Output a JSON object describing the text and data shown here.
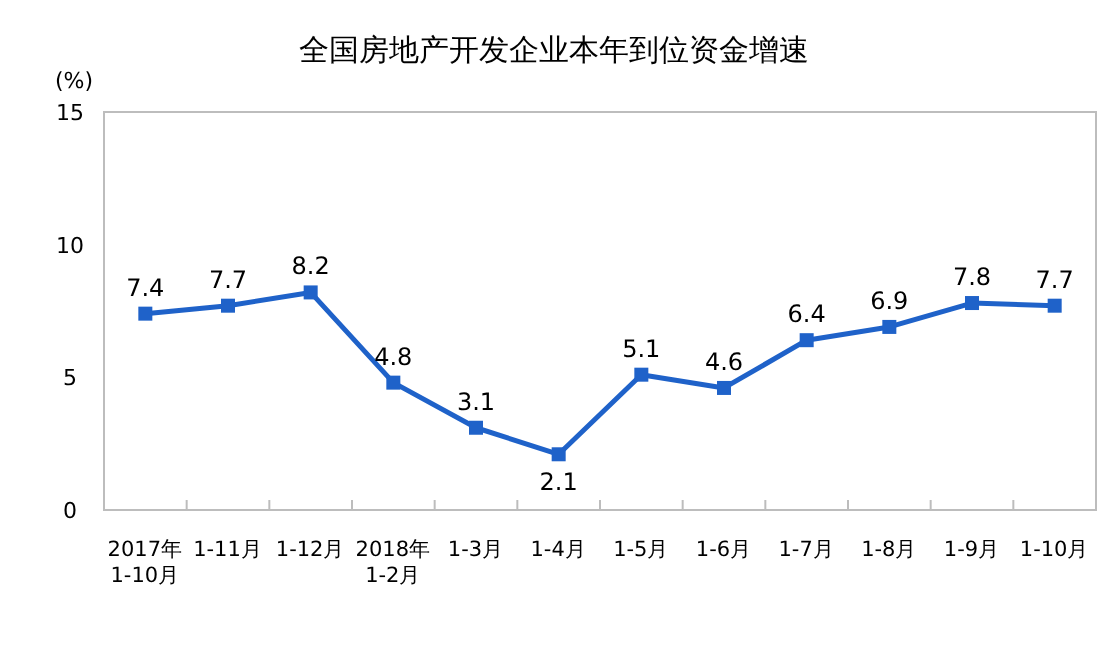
{
  "chart_data": {
    "type": "line",
    "title": "全国房地产开发企业本年到位资金增速",
    "ylabel": "(%)",
    "categories": [
      "2017年\n1-10月",
      "1-11月",
      "1-12月",
      "2018年\n1-2月",
      "1-3月",
      "1-4月",
      "1-5月",
      "1-6月",
      "1-7月",
      "1-8月",
      "1-9月",
      "1-10月"
    ],
    "series": [
      {
        "color": "#1f62c9",
        "values": [
          7.4,
          7.7,
          8.2,
          4.8,
          3.1,
          2.1,
          5.1,
          4.6,
          6.4,
          6.9,
          7.8,
          7.7
        ]
      }
    ],
    "ylim": [
      0,
      15
    ],
    "yticks": [
      0,
      5,
      10,
      15
    ],
    "marker": "square",
    "line_style": "solid",
    "data_labels": true,
    "grid": false
  }
}
